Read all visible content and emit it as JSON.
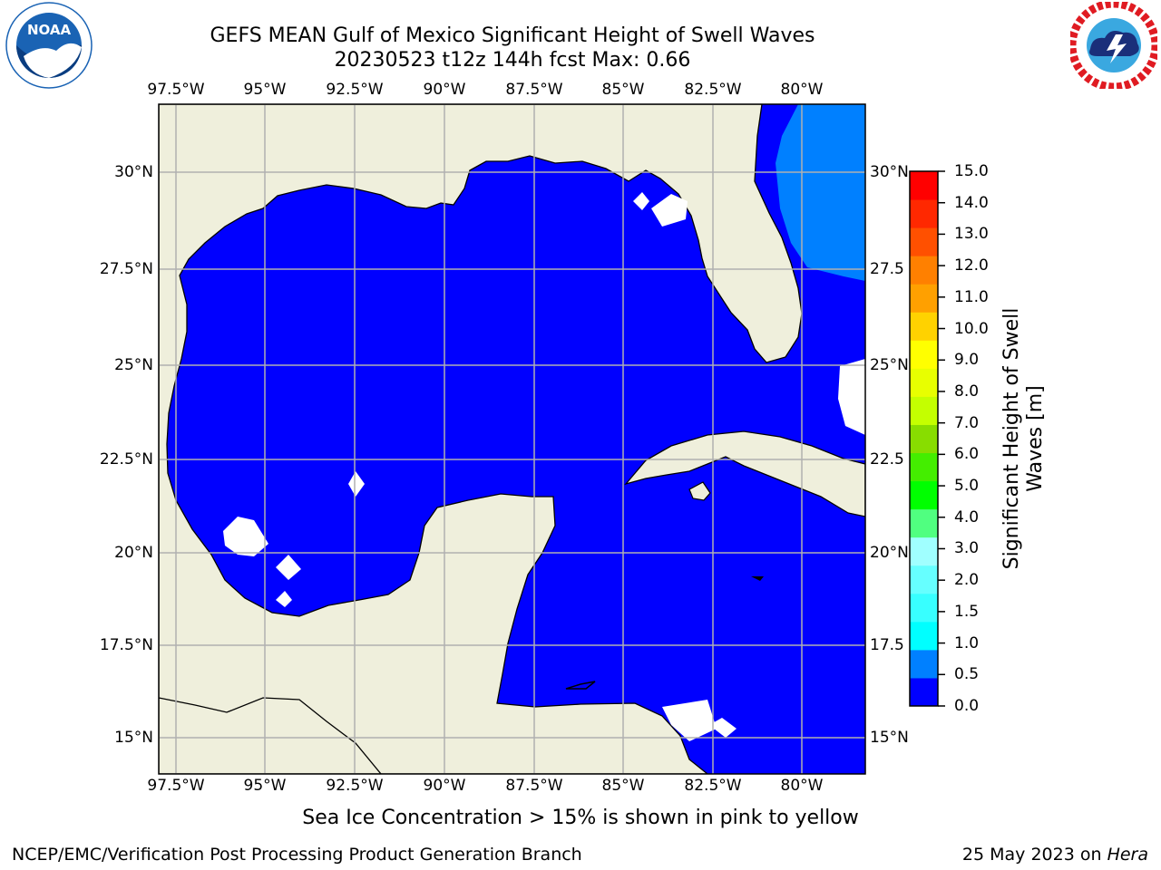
{
  "header": {
    "title_line1": "GEFS MEAN Gulf of Mexico Significant Height of Swell Waves",
    "title_line2": "20230523 t12z 144h fcst   Max: 0.66"
  },
  "logos": {
    "left": {
      "text": "NOAA",
      "ring_text": "NATIONAL OCEANIC AND ATMOSPHERIC ADMINISTRATION · U.S. DEPARTMENT OF COMMERCE",
      "color": "#1a63b4"
    },
    "right": {
      "ring_text": "NATIONAL WEATHER SERVICE",
      "color": "#e01b22"
    }
  },
  "map": {
    "lon_labels": [
      "97.5°W",
      "95°W",
      "92.5°W",
      "90°W",
      "87.5°W",
      "85°W",
      "82.5°W",
      "80°W"
    ],
    "lat_labels": [
      "30°N",
      "27.5°N",
      "25°N",
      "22.5°N",
      "20°N",
      "17.5°N",
      "15°N"
    ],
    "lat_labels_right": [
      "30°N",
      "27.5",
      "25°N",
      "22.5",
      "20°N",
      "17.5",
      "15°N"
    ],
    "colors": {
      "land": "#efefdc",
      "sea_low": "#0000ff",
      "sea_mid": "#0080ff",
      "grid": "#b0b0b0",
      "coast": "#000000"
    }
  },
  "colorbar": {
    "ticks": [
      "15.0",
      "14.0",
      "13.0",
      "12.0",
      "11.0",
      "10.0",
      "9.0",
      "8.0",
      "7.0",
      "6.0",
      "5.0",
      "4.0",
      "3.0",
      "2.0",
      "1.5",
      "1.0",
      "0.5",
      "0.0"
    ],
    "colors": [
      "#0000ff",
      "#0080ff",
      "#00ffff",
      "#38ffff",
      "#66ffff",
      "#a0ffff",
      "#50ff80",
      "#00ff00",
      "#44ee00",
      "#88dd00",
      "#c4ff00",
      "#e8ff00",
      "#ffff00",
      "#ffd200",
      "#ffa000",
      "#ff8000",
      "#ff5000",
      "#ff2800",
      "#ff0000"
    ],
    "label_line1": "Significant Height of Swell",
    "label_line2": "Waves [m]"
  },
  "note": "Sea Ice Concentration > 15% is shown in pink to yellow",
  "footer": {
    "left": "NCEP/EMC/Verification Post Processing Product Generation Branch",
    "right_prefix": "25 May 2023 on ",
    "right_host": "Hera"
  }
}
